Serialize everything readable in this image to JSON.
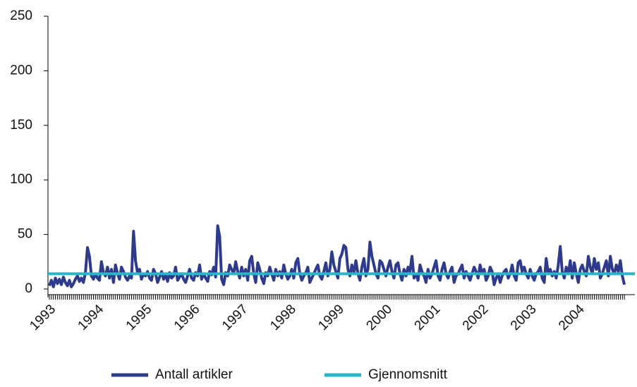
{
  "chart_data": {
    "type": "line",
    "categories": [
      "1993",
      null,
      null,
      null,
      null,
      null,
      null,
      null,
      null,
      null,
      null,
      null,
      null,
      null,
      null,
      null,
      null,
      null,
      null,
      null,
      null,
      null,
      null,
      null,
      "1994",
      null,
      null,
      null,
      null,
      null,
      null,
      null,
      null,
      null,
      null,
      null,
      null,
      null,
      null,
      null,
      null,
      null,
      null,
      null,
      null,
      null,
      null,
      null,
      "1995",
      null,
      null,
      null,
      null,
      null,
      null,
      null,
      null,
      null,
      null,
      null,
      null,
      null,
      null,
      null,
      null,
      null,
      null,
      null,
      null,
      null,
      null,
      null,
      "1996",
      null,
      null,
      null,
      null,
      null,
      null,
      null,
      null,
      null,
      null,
      null,
      null,
      null,
      null,
      null,
      null,
      null,
      null,
      null,
      null,
      null,
      null,
      null,
      "1997",
      null,
      null,
      null,
      null,
      null,
      null,
      null,
      null,
      null,
      null,
      null,
      null,
      null,
      null,
      null,
      null,
      null,
      null,
      null,
      null,
      null,
      null,
      null,
      "1998",
      null,
      null,
      null,
      null,
      null,
      null,
      null,
      null,
      null,
      null,
      null,
      null,
      null,
      null,
      null,
      null,
      null,
      null,
      null,
      null,
      null,
      null,
      null,
      "1999",
      null,
      null,
      null,
      null,
      null,
      null,
      null,
      null,
      null,
      null,
      null,
      null,
      null,
      null,
      null,
      null,
      null,
      null,
      null,
      null,
      null,
      null,
      null,
      "2000",
      null,
      null,
      null,
      null,
      null,
      null,
      null,
      null,
      null,
      null,
      null,
      null,
      null,
      null,
      null,
      null,
      null,
      null,
      null,
      null,
      null,
      null,
      null,
      "2001",
      null,
      null,
      null,
      null,
      null,
      null,
      null,
      null,
      null,
      null,
      null,
      null,
      null,
      null,
      null,
      null,
      null,
      null,
      null,
      null,
      null,
      null,
      null,
      "2002",
      null,
      null,
      null,
      null,
      null,
      null,
      null,
      null,
      null,
      null,
      null,
      null,
      null,
      null,
      null,
      null,
      null,
      null,
      null,
      null,
      null,
      null,
      null,
      "2003",
      null,
      null,
      null,
      null,
      null,
      null,
      null,
      null,
      null,
      null,
      null,
      null,
      null,
      null,
      null,
      null,
      null,
      null,
      null,
      null,
      null,
      null,
      null,
      "2004",
      null,
      null,
      null,
      null,
      null,
      null,
      null,
      null,
      null,
      null,
      null,
      null,
      null,
      null,
      null,
      null,
      null,
      null,
      null,
      null,
      null,
      null,
      null
    ],
    "series": [
      {
        "name": "Antall artikler",
        "color": "#2e3a8c",
        "values": [
          3,
          8,
          2,
          10,
          5,
          9,
          4,
          11,
          6,
          3,
          8,
          2,
          5,
          9,
          12,
          7,
          10,
          6,
          15,
          38,
          30,
          12,
          9,
          14,
          10,
          8,
          25,
          15,
          12,
          20,
          10,
          18,
          6,
          22,
          14,
          9,
          20,
          16,
          11,
          8,
          12,
          10,
          53,
          26,
          15,
          18,
          9,
          14,
          12,
          16,
          10,
          8,
          18,
          14,
          6,
          11,
          16,
          9,
          13,
          7,
          15,
          10,
          12,
          20,
          8,
          11,
          14,
          9,
          6,
          12,
          18,
          10,
          8,
          15,
          12,
          22,
          9,
          14,
          10,
          7,
          16,
          13,
          20,
          11,
          58,
          48,
          9,
          4,
          15,
          12,
          22,
          18,
          14,
          25,
          16,
          10,
          20,
          12,
          18,
          8,
          26,
          30,
          14,
          6,
          24,
          18,
          10,
          5,
          15,
          12,
          20,
          14,
          8,
          18,
          12,
          16,
          10,
          22,
          14,
          9,
          12,
          18,
          10,
          24,
          28,
          14,
          8,
          12,
          15,
          20,
          6,
          10,
          14,
          18,
          22,
          12,
          9,
          16,
          24,
          12,
          18,
          34,
          22,
          16,
          10,
          28,
          32,
          40,
          38,
          18,
          12,
          22,
          15,
          26,
          14,
          8,
          20,
          28,
          12,
          18,
          43,
          30,
          22,
          14,
          10,
          26,
          24,
          18,
          12,
          20,
          26,
          16,
          10,
          22,
          24,
          14,
          8,
          18,
          12,
          20,
          16,
          30,
          10,
          14,
          8,
          22,
          16,
          12,
          6,
          18,
          10,
          14,
          20,
          26,
          12,
          8,
          18,
          24,
          14,
          10,
          16,
          20,
          6,
          12,
          14,
          18,
          22,
          10,
          16,
          12,
          8,
          14,
          20,
          16,
          10,
          22,
          14,
          18,
          8,
          12,
          20,
          16,
          4,
          10,
          14,
          6,
          12,
          16,
          18,
          10,
          14,
          22,
          12,
          8,
          24,
          26,
          16,
          20,
          14,
          10,
          18,
          12,
          8,
          14,
          16,
          20,
          10,
          6,
          28,
          14,
          18,
          12,
          16,
          10,
          22,
          39,
          16,
          10,
          20,
          14,
          26,
          10,
          24,
          14,
          6,
          18,
          22,
          16,
          12,
          30,
          20,
          14,
          28,
          18,
          24,
          10,
          14,
          20,
          26,
          12,
          30,
          18,
          14,
          22,
          16,
          26,
          12,
          4
        ]
      }
    ],
    "reference_line": {
      "name": "Gjennomsnitt",
      "color": "#2bb5c8",
      "value": 14
    },
    "ylim": [
      0,
      250
    ],
    "yticks": [
      0,
      50,
      100,
      150,
      200,
      250
    ]
  }
}
